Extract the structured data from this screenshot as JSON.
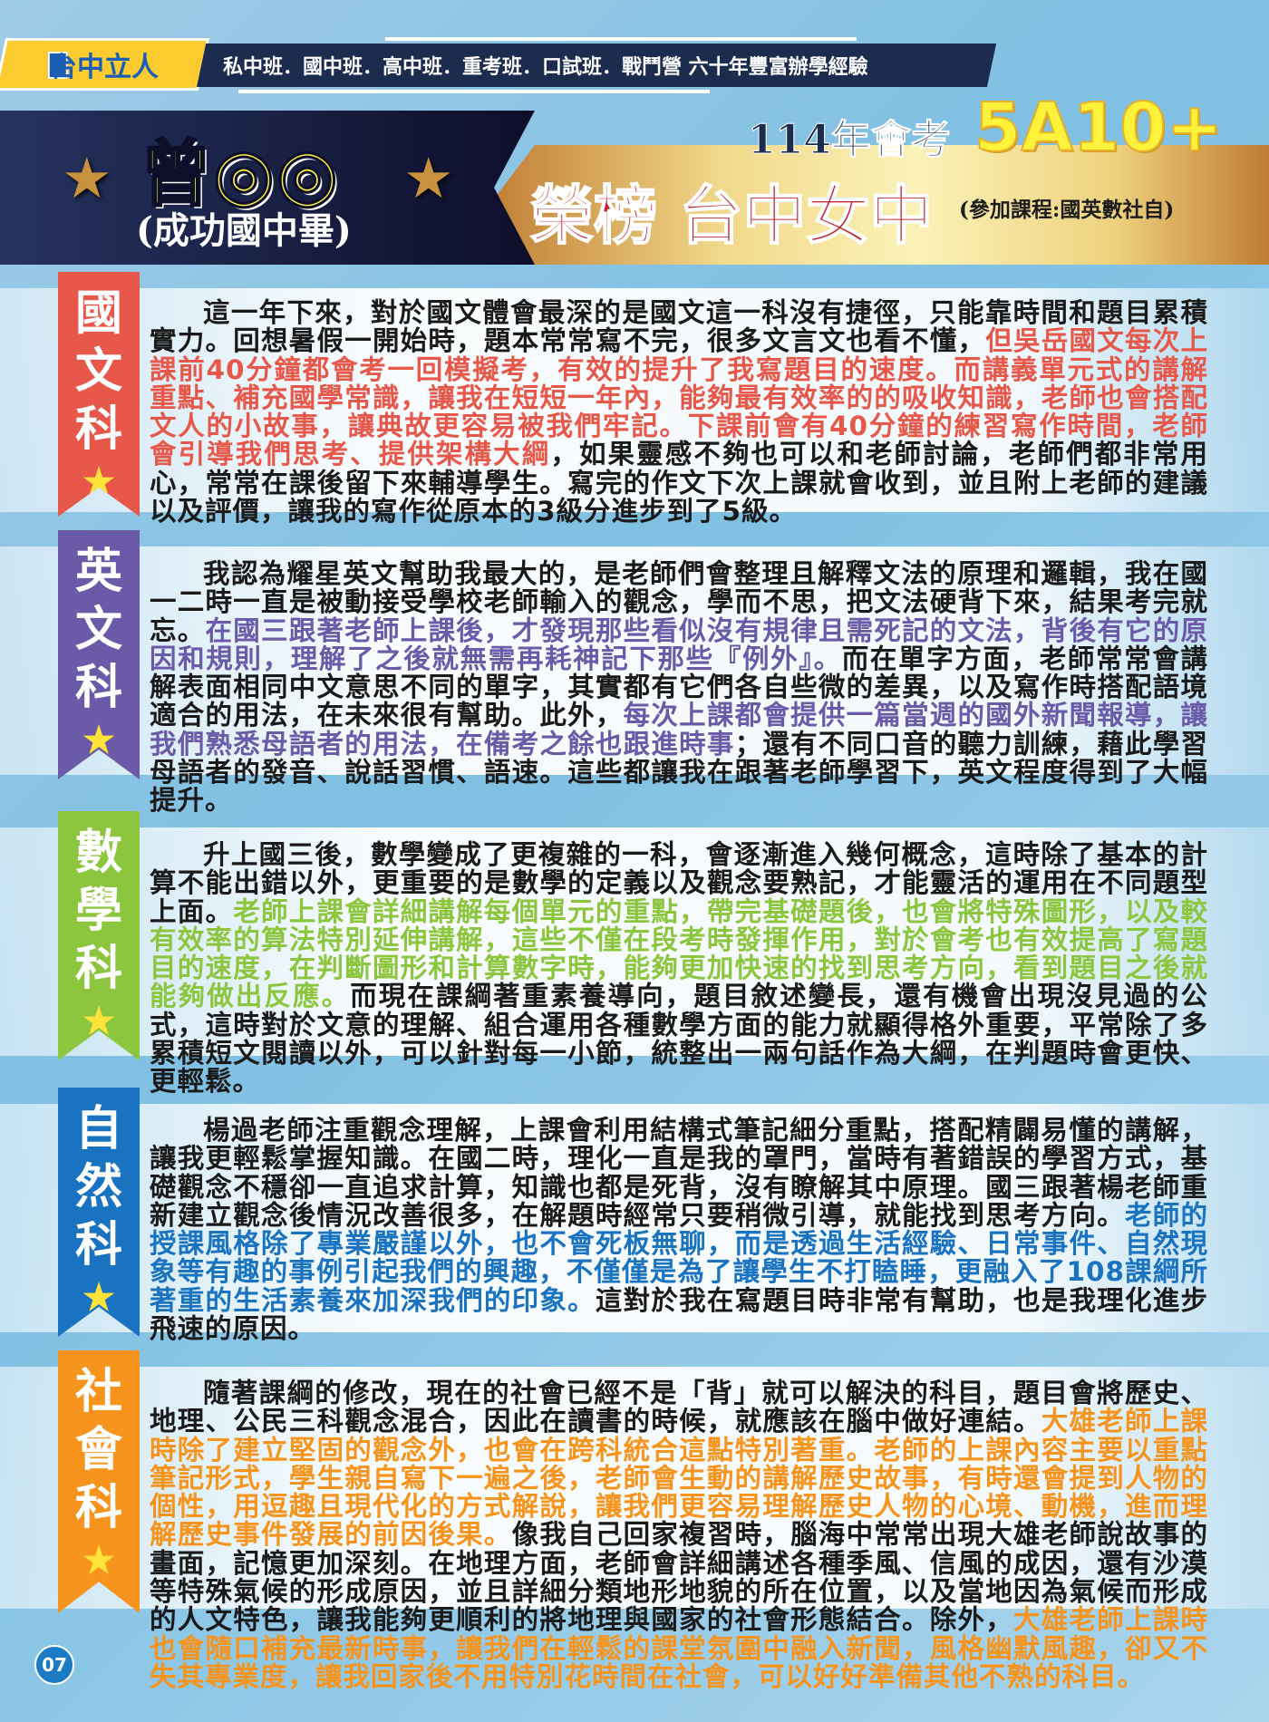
{
  "header": {
    "logo_text": "台中立人",
    "tagline": "私中班．國中班．高中班．重考班．口試班．戰鬥營 六十年豐富辦學經驗"
  },
  "banner": {
    "student_name": "曾◎◎",
    "school": "(成功國中畢)",
    "exam": "114年會考",
    "score": "5A10+",
    "honor": "榮榜 台中女中",
    "courses": "(參加課程:國英數社自)"
  },
  "colors": {
    "chinese": "#e8584a",
    "english": "#6a5aa8",
    "math": "#8cc63f",
    "science": "#1a73c0",
    "social": "#f7941d"
  },
  "sections": [
    {
      "subject": "國文科",
      "color": "#e8584a",
      "segments": [
        {
          "text": "這一年下來，對於國文體會最深的是國文這一科沒有捷徑，只能靠時間和題目累積實力。回想暑假一開始時，題本常常寫不完，很多文言文也看不懂，",
          "hl": false
        },
        {
          "text": "但吳岳國文每次上課前40分鐘都會考一回模擬考，有效的提升了我寫題目的速度。而講義單元式的講解重點、補充國學常識，讓我在短短一年內，能夠最有效率的的吸收知識，老師也會搭配文人的小故事，讓典故更容易被我們牢記。下課前會有40分鐘的練習寫作時間，老師會引導我們思考、提供架構大綱",
          "hl": true
        },
        {
          "text": "，如果靈感不夠也可以和老師討論，老師們都非常用心，常常在課後留下來輔導學生。寫完的作文下次上課就會收到，並且附上老師的建議以及評價，讓我的寫作從原本的3級分進步到了5級。",
          "hl": false
        }
      ]
    },
    {
      "subject": "英文科",
      "color": "#6a5aa8",
      "segments": [
        {
          "text": "我認為耀星英文幫助我最大的，是老師們會整理且解釋文法的原理和邏輯，我在國一二時一直是被動接受學校老師輸入的觀念，學而不思，把文法硬背下來，結果考完就忘。",
          "hl": false
        },
        {
          "text": "在國三跟著老師上課後，才發現那些看似沒有規律且需死記的文法，背後有它的原因和規則，理解了之後就無需再耗神記下那些『例外』。",
          "hl": true
        },
        {
          "text": "而在單字方面，老師常常會講解表面相同中文意思不同的單字，其實都有它們各自些微的差異，以及寫作時搭配語境適合的用法，在未來很有幫助。此外，",
          "hl": false
        },
        {
          "text": "每次上課都會提供一篇當週的國外新聞報導，讓我們熟悉母語者的用法，在備考之餘也跟進時事",
          "hl": true
        },
        {
          "text": "；還有不同口音的聽力訓練，藉此學習母語者的發音、說話習慣、語速。這些都讓我在跟著老師學習下，英文程度得到了大幅提升。",
          "hl": false
        }
      ]
    },
    {
      "subject": "數學科",
      "color": "#8cc63f",
      "segments": [
        {
          "text": "升上國三後，數學變成了更複雜的一科，會逐漸進入幾何概念，這時除了基本的計算不能出錯以外，更重要的是數學的定義以及觀念要熟記，才能靈活的運用在不同題型上面。",
          "hl": false
        },
        {
          "text": "老師上課會詳細講解每個單元的重點，帶完基礎題後，也會將特殊圖形，以及較有效率的算法特別延伸講解，這些不僅在段考時發揮作用，對於會考也有效提高了寫題目的速度，在判斷圖形和計算數字時，能夠更加快速的找到思考方向，看到題目之後就能夠做出反應。",
          "hl": true
        },
        {
          "text": "而現在課綱著重素養導向，題目敘述變長，還有機會出現沒見過的公式，這時對於文意的理解、組合運用各種數學方面的能力就顯得格外重要，平常除了多累積短文閱讀以外，可以針對每一小節，統整出一兩句話作為大綱，在判題時會更快、更輕鬆。",
          "hl": false
        }
      ]
    },
    {
      "subject": "自然科",
      "color": "#1a73c0",
      "segments": [
        {
          "text": "楊過老師注重觀念理解，上課會利用結構式筆記細分重點，搭配精闢易懂的講解，讓我更輕鬆掌握知識。在國二時，理化一直是我的罩門，當時有著錯誤的學習方式，基礎觀念不穩卻一直追求計算，知識也都是死背，沒有瞭解其中原理。國三跟著楊老師重新建立觀念後情況改善很多，在解題時經常只要稍微引導，就能找到思考方向。",
          "hl": false
        },
        {
          "text": "老師的授課風格除了專業嚴謹以外，也不會死板無聊，而是透過生活經驗、日常事件、自然現象等有趣的事例引起我們的興趣，不僅僅是為了讓學生不打瞌睡，更融入了108課綱所著重的生活素養來加深我們的印象。",
          "hl": true
        },
        {
          "text": "這對於我在寫題目時非常有幫助，也是我理化進步飛速的原因。",
          "hl": false
        }
      ]
    },
    {
      "subject": "社會科",
      "color": "#f7941d",
      "segments": [
        {
          "text": "隨著課綱的修改，現在的社會已經不是「背」就可以解決的科目，題目會將歷史、地理、公民三科觀念混合，因此在讀書的時候，就應該在腦中做好連結。",
          "hl": false
        },
        {
          "text": "大雄老師上課時除了建立堅固的觀念外，也會在跨科統合這點特別著重。老師的上課內容主要以重點筆記形式，學生親自寫下一遍之後，老師會生動的講解歷史故事，有時還會提到人物的個性，用逗趣且現代化的方式解說，讓我們更容易理解歷史人物的心境、動機，進而理解歷史事件發展的前因後果。",
          "hl": true
        },
        {
          "text": "像我自己回家複習時，腦海中常常出現大雄老師說故事的畫面，記憶更加深刻。在地理方面，老師會詳細講述各種季風、信風的成因，還有沙漠等特殊氣候的形成原因，並且詳細分類地形地貌的所在位置，以及當地因為氣候而形成的人文特色，讓我能夠更順利的將地理與國家的社會形態結合。除外，",
          "hl": false
        },
        {
          "text": "大雄老師上課時也會隨口補充最新時事，讓我們在輕鬆的課堂氛圍中融入新聞，風格幽默風趣，卻又不失其專業度，讓我回家後不用特別花時間在社會，可以好好準備其他不熟的科目。",
          "hl": true
        }
      ]
    }
  ],
  "page_number": "07"
}
